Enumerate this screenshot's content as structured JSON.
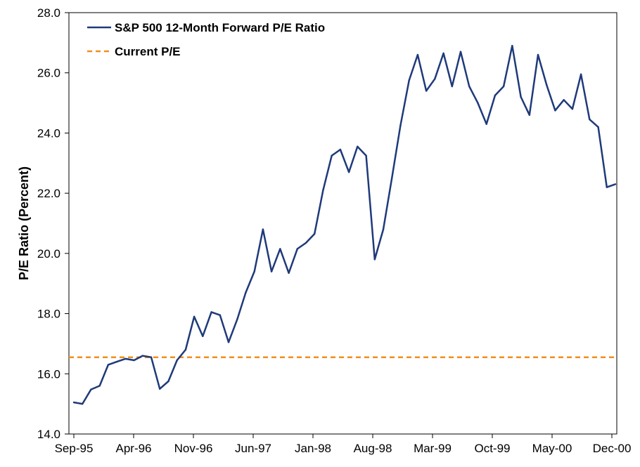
{
  "chart_data": {
    "type": "line",
    "title": "",
    "xlabel": "",
    "ylabel": "P/E Ratio (Percent)",
    "ylim": [
      14.0,
      28.0
    ],
    "yticks": [
      "14.0",
      "16.0",
      "18.0",
      "20.0",
      "22.0",
      "24.0",
      "26.0",
      "28.0"
    ],
    "x_tick_labels": [
      "Sep-95",
      "Apr-96",
      "Nov-96",
      "Jun-97",
      "Jan-98",
      "Aug-98",
      "Mar-99",
      "Oct-99",
      "May-00",
      "Dec-00"
    ],
    "legend_position": "top-left",
    "grid": false,
    "series": [
      {
        "name": "S&P 500 12-Month Forward P/E Ratio",
        "color": "#1f3a7a",
        "style": "solid",
        "values": [
          15.05,
          15.0,
          15.48,
          15.6,
          16.3,
          16.4,
          16.5,
          16.45,
          16.6,
          16.55,
          15.5,
          15.75,
          16.45,
          16.8,
          17.9,
          17.25,
          18.05,
          17.95,
          17.05,
          17.8,
          18.7,
          19.4,
          20.8,
          19.4,
          20.15,
          19.35,
          20.15,
          20.35,
          20.65,
          22.1,
          23.25,
          23.45,
          22.7,
          23.55,
          23.25,
          19.8,
          20.8,
          22.5,
          24.25,
          25.75,
          26.6,
          25.4,
          25.8,
          26.65,
          25.55,
          26.7,
          25.55,
          25.0,
          24.3,
          25.25,
          25.55,
          26.9,
          25.2,
          24.6,
          26.6,
          25.6,
          24.75,
          25.1,
          24.8,
          25.95,
          24.45,
          24.2,
          22.2,
          22.3
        ]
      },
      {
        "name": "Current P/E",
        "color": "#f28e1c",
        "style": "dashed",
        "value": 16.55
      }
    ]
  }
}
